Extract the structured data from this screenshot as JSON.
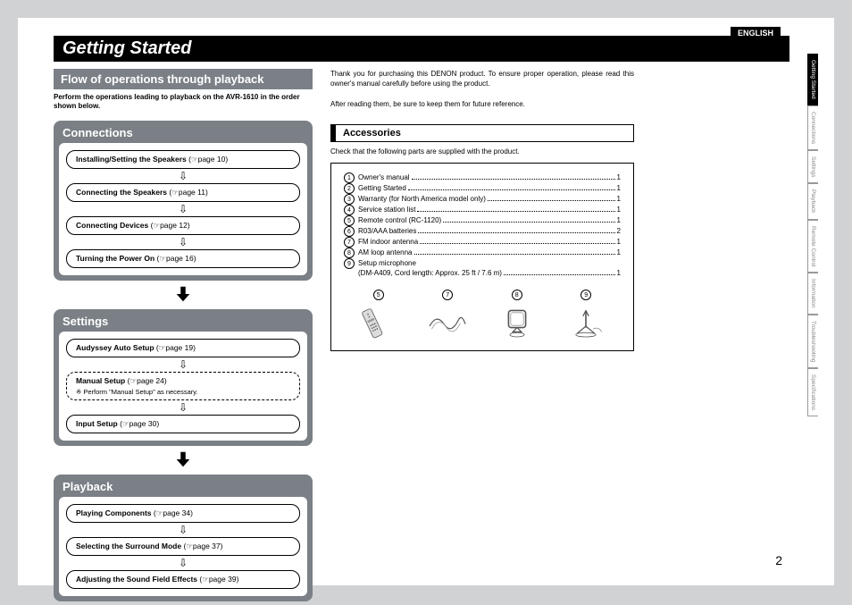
{
  "language_tag": "ENGLISH",
  "main_title": "Getting Started",
  "page_number": "2",
  "flow": {
    "heading": "Flow of operations through playback",
    "intro": "Perform the operations leading to playback on the AVR-1610 in the order shown below.",
    "sections": [
      {
        "title": "Connections",
        "steps": [
          {
            "label": "Installing/Setting the Speakers",
            "ref": "page 10"
          },
          {
            "label": "Connecting the Speakers",
            "ref": "page 11"
          },
          {
            "label": "Connecting Devices",
            "ref": "page 12"
          },
          {
            "label": "Turning the Power On",
            "ref": "page 16"
          }
        ]
      },
      {
        "title": "Settings",
        "steps": [
          {
            "label": "Audyssey Auto Setup",
            "ref": "page 19"
          },
          {
            "label": "Manual Setup",
            "ref": "page 24",
            "dashed": true,
            "note": "※ Perform \"Manual Setup\" as necessary."
          },
          {
            "label": "Input Setup",
            "ref": "page 30"
          }
        ]
      },
      {
        "title": "Playback",
        "steps": [
          {
            "label": "Playing Components",
            "ref": "page 34"
          },
          {
            "label": "Selecting the Surround Mode",
            "ref": "page 37"
          },
          {
            "label": "Adjusting the Sound Field Effects",
            "ref": "page 39"
          }
        ]
      }
    ]
  },
  "right": {
    "intro1": "Thank you for purchasing this DENON product. To ensure proper operation, please read this owner's manual carefully before using the product.",
    "intro2": "After reading them, be sure to keep them for future reference.",
    "accessories_heading": "Accessories",
    "accessories_check": "Check that the following parts are supplied with the product.",
    "items": [
      {
        "n": "1",
        "label": "Owner's manual",
        "qty": "1"
      },
      {
        "n": "2",
        "label": "Getting Started",
        "qty": "1"
      },
      {
        "n": "3",
        "label": "Warranty (for North America model only)",
        "qty": "1"
      },
      {
        "n": "4",
        "label": "Service station list",
        "qty": "1"
      },
      {
        "n": "5",
        "label": "Remote control (RC-1120)",
        "qty": "1"
      },
      {
        "n": "6",
        "label": "R03/AAA batteries",
        "qty": "2"
      },
      {
        "n": "7",
        "label": "FM indoor antenna",
        "qty": "1"
      },
      {
        "n": "8",
        "label": "AM loop antenna",
        "qty": "1"
      },
      {
        "n": "9",
        "label": "Setup microphone",
        "qty": ""
      }
    ],
    "item9_sub_label": "(DM-A409, Cord length: Approx. 25 ft / 7.6 m)",
    "item9_sub_qty": "1",
    "illus": [
      "5",
      "7",
      "8",
      "9"
    ]
  },
  "side_tabs": [
    "Getting Started",
    "Connections",
    "Settings",
    "Playback",
    "Remote Control",
    "Information",
    "Troubleshooting",
    "Specifications"
  ],
  "colors": {
    "header_gray": "#7a8086",
    "black": "#000000",
    "bg": "#d0d2d4"
  }
}
